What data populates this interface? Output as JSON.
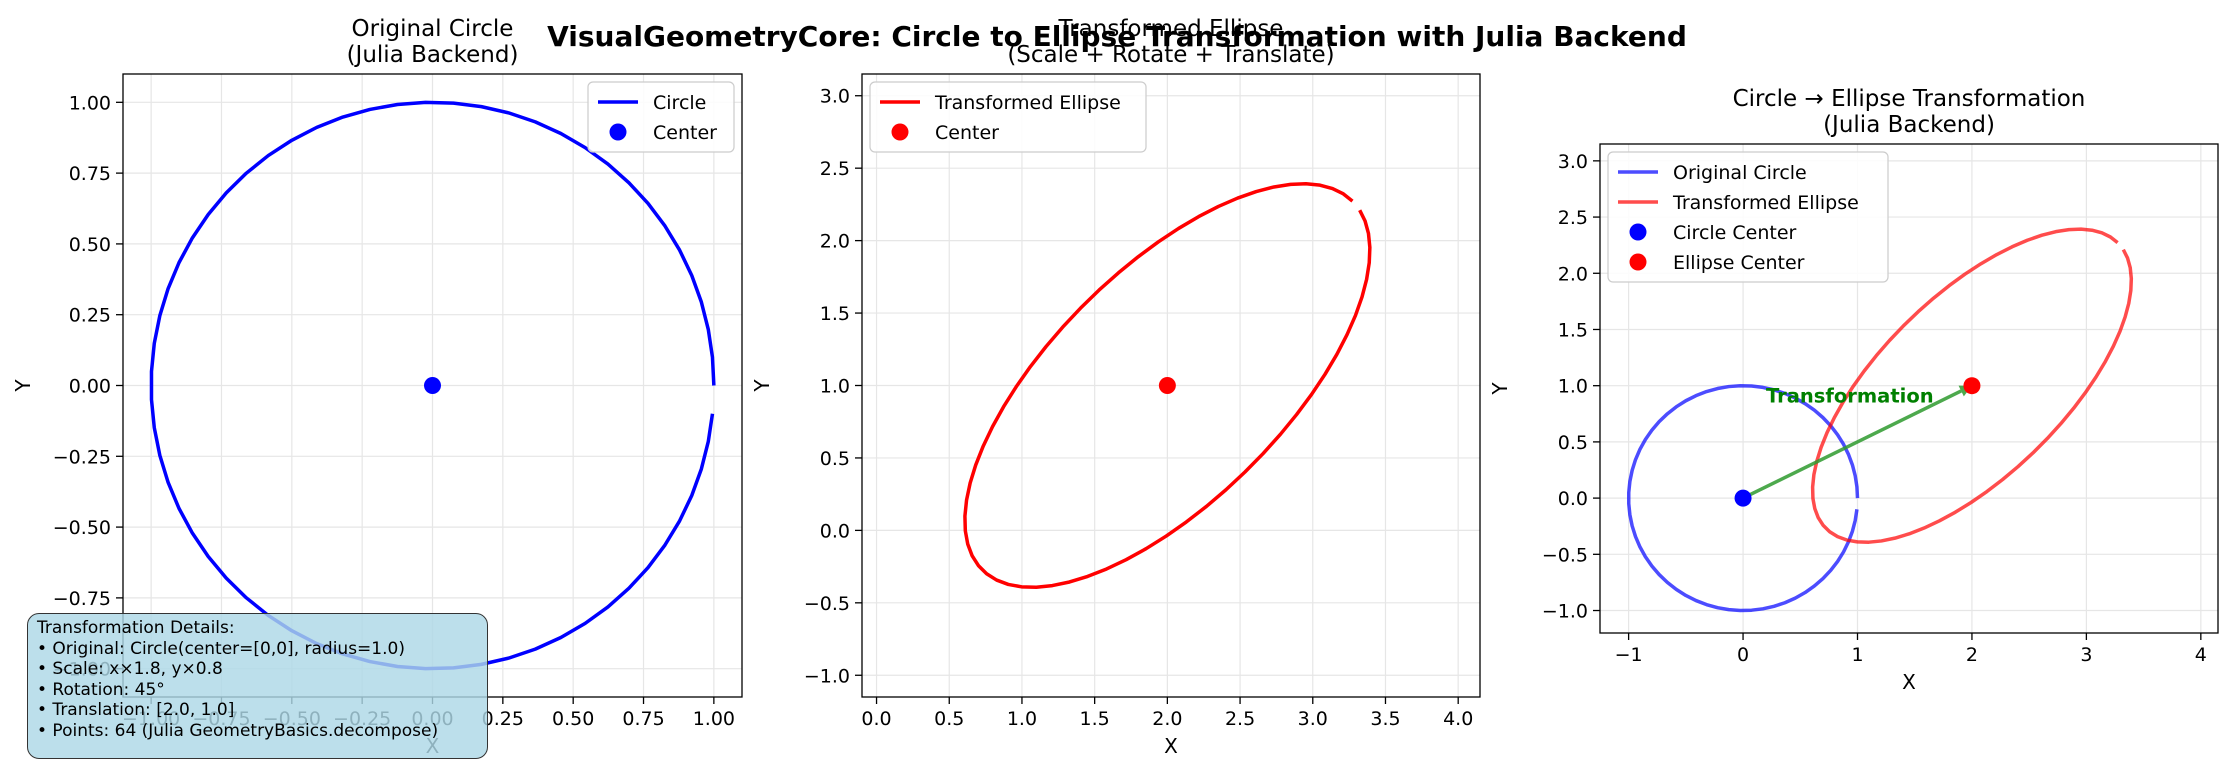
{
  "figure": {
    "suptitle": "VisualGeometryCore: Circle to Ellipse Transformation with Julia Backend"
  },
  "colors": {
    "circle": "#0000ff",
    "ellipse": "#ff0000",
    "arrow": "#2e9a2e",
    "arrow_label": "#008000",
    "info_box": "#add8e6"
  },
  "info_box": {
    "lines": [
      "Transformation Details:",
      "• Original: Circle(center=[0,0], radius=1.0)",
      "• Scale: x×1.8, y×0.8",
      "• Rotation: 45°",
      "• Translation: [2.0, 1.0]",
      "• Points: 64 (Julia GeometryBasics.decompose)"
    ]
  },
  "chart_data": [
    {
      "type": "line",
      "title": "Original Circle\n(Julia Backend)",
      "xlabel": "X",
      "ylabel": "Y",
      "xlim": [
        -1.1,
        1.1
      ],
      "ylim": [
        -1.1,
        1.1
      ],
      "xticks": [
        -1.0,
        -0.75,
        -0.5,
        -0.25,
        0.0,
        0.25,
        0.5,
        0.75,
        1.0
      ],
      "yticks": [
        -1.0,
        -0.75,
        -0.5,
        -0.25,
        0.0,
        0.25,
        0.5,
        0.75,
        1.0
      ],
      "tick_decimals": 2,
      "grid": true,
      "legend_position": "upper-right",
      "shape": {
        "kind": "ellipse",
        "center": [
          0,
          0
        ],
        "a": 1.0,
        "b": 1.0,
        "rotation_deg": 0,
        "points": 64,
        "gap": true
      },
      "series": [
        {
          "name": "Circle",
          "kind": "curve",
          "color": "#0000ff",
          "opacity": 1.0
        },
        {
          "name": "Center",
          "kind": "point",
          "x": 0,
          "y": 0,
          "color": "#0000ff"
        }
      ]
    },
    {
      "type": "line",
      "title": "Transformed Ellipse\n(Scale + Rotate + Translate)",
      "xlabel": "X",
      "ylabel": "Y",
      "xlim": [
        -0.1,
        4.15
      ],
      "ylim": [
        -1.15,
        3.15
      ],
      "xticks": [
        0.0,
        0.5,
        1.0,
        1.5,
        2.0,
        2.5,
        3.0,
        3.5,
        4.0
      ],
      "yticks": [
        -1.0,
        -0.5,
        0.0,
        0.5,
        1.0,
        1.5,
        2.0,
        2.5,
        3.0
      ],
      "tick_decimals": 1,
      "grid": true,
      "legend_position": "upper-left",
      "shape": {
        "kind": "ellipse",
        "center": [
          2,
          1
        ],
        "a": 1.8,
        "b": 0.8,
        "rotation_deg": 45,
        "points": 64,
        "gap": true
      },
      "series": [
        {
          "name": "Transformed Ellipse",
          "kind": "curve",
          "color": "#ff0000",
          "opacity": 1.0
        },
        {
          "name": "Center",
          "kind": "point",
          "x": 2,
          "y": 1,
          "color": "#ff0000"
        }
      ]
    },
    {
      "type": "line",
      "title": "Circle → Ellipse Transformation\n(Julia Backend)",
      "xlabel": "X",
      "ylabel": "Y",
      "xlim": [
        -1.25,
        4.15
      ],
      "ylim": [
        -1.2,
        3.15
      ],
      "xticks": [
        -1,
        0,
        1,
        2,
        3,
        4
      ],
      "yticks": [
        -1.0,
        -0.5,
        0.0,
        0.5,
        1.0,
        1.5,
        2.0,
        2.5,
        3.0
      ],
      "tick_decimals": 1,
      "xtick_decimals": 0,
      "grid": true,
      "legend_position": "upper-left",
      "shapes": [
        {
          "kind": "ellipse",
          "center": [
            0,
            0
          ],
          "a": 1.0,
          "b": 1.0,
          "rotation_deg": 0,
          "points": 64,
          "gap": true
        },
        {
          "kind": "ellipse",
          "center": [
            2,
            1
          ],
          "a": 1.8,
          "b": 0.8,
          "rotation_deg": 45,
          "points": 64,
          "gap": true
        }
      ],
      "series": [
        {
          "name": "Original Circle",
          "kind": "curve",
          "shape": 0,
          "color": "#0000ff",
          "opacity": 0.7
        },
        {
          "name": "Transformed Ellipse",
          "kind": "curve",
          "shape": 1,
          "color": "#ff0000",
          "opacity": 0.7
        },
        {
          "name": "Circle Center",
          "kind": "point",
          "x": 0,
          "y": 0,
          "color": "#0000ff"
        },
        {
          "name": "Ellipse Center",
          "kind": "point",
          "x": 2,
          "y": 1,
          "color": "#ff0000"
        }
      ],
      "annotation": {
        "text": "Transformation",
        "from": [
          0,
          0
        ],
        "to": [
          2,
          1
        ],
        "label_at": [
          0.2,
          0.85
        ]
      }
    }
  ]
}
